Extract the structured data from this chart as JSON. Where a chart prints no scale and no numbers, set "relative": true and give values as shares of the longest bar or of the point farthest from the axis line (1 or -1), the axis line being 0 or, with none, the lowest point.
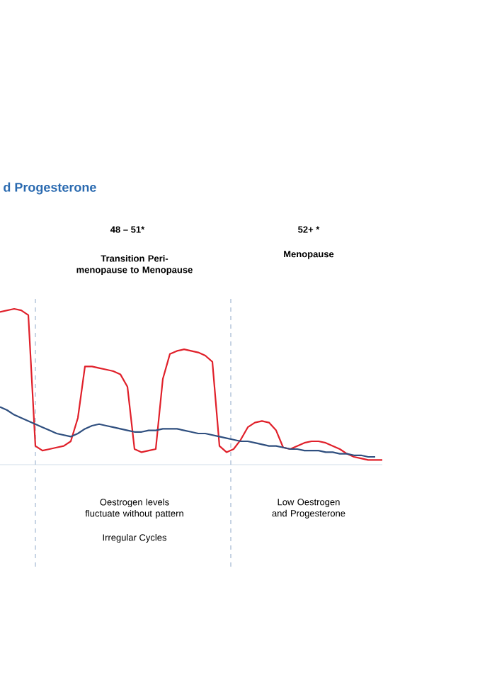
{
  "chart_data": {
    "type": "line",
    "relative": true,
    "title": "d Progesterone",
    "annotations": [
      "48 – 51*",
      "Transition Peri-menopause to Menopause",
      "52+ *",
      "Menopause",
      "Oestrogen levels fluctuate without pattern",
      "Irregular Cycles",
      "Low Oestrogen and Progesterone"
    ],
    "categories": [
      null,
      null,
      null,
      null,
      null,
      null,
      null,
      null,
      null,
      null,
      null,
      null,
      null,
      null,
      null,
      null,
      null,
      null,
      null,
      null,
      null,
      null,
      null,
      null,
      null,
      null,
      null,
      null,
      null,
      null,
      null,
      null,
      null,
      null,
      null,
      null,
      null,
      null,
      null,
      null,
      null,
      null,
      null,
      null,
      null,
      null,
      null,
      null,
      null,
      null,
      null,
      null,
      null,
      null,
      null
    ],
    "series": [
      {
        "color": "#e0202a",
        "values": [
          0.98,
          0.99,
          1.0,
          0.99,
          0.96,
          0.12,
          0.09,
          0.1,
          0.11,
          0.12,
          0.15,
          0.3,
          0.63,
          0.63,
          0.62,
          0.61,
          0.6,
          0.58,
          0.5,
          0.1,
          0.08,
          0.09,
          0.1,
          0.55,
          0.71,
          0.73,
          0.74,
          0.73,
          0.72,
          0.7,
          0.66,
          0.12,
          0.08,
          0.1,
          0.16,
          0.24,
          0.27,
          0.28,
          0.27,
          0.22,
          0.11,
          0.1,
          0.12,
          0.14,
          0.15,
          0.15,
          0.14,
          0.12,
          0.1,
          0.07,
          0.05,
          0.04,
          0.03,
          0.03,
          0.03
        ]
      },
      {
        "color": "#2f4f7f",
        "values": [
          0.37,
          0.35,
          0.32,
          0.3,
          0.28,
          0.26,
          0.24,
          0.22,
          0.2,
          0.19,
          0.18,
          0.2,
          0.23,
          0.25,
          0.26,
          0.25,
          0.24,
          0.23,
          0.22,
          0.21,
          0.21,
          0.22,
          0.22,
          0.23,
          0.23,
          0.23,
          0.22,
          0.21,
          0.2,
          0.2,
          0.19,
          0.18,
          0.17,
          0.16,
          0.15,
          0.15,
          0.14,
          0.13,
          0.12,
          0.12,
          0.11,
          0.1,
          0.1,
          0.09,
          0.09,
          0.09,
          0.08,
          0.08,
          0.07,
          0.07,
          0.06,
          0.06,
          0.05,
          0.05,
          null
        ]
      }
    ],
    "line_style": "solid"
  }
}
